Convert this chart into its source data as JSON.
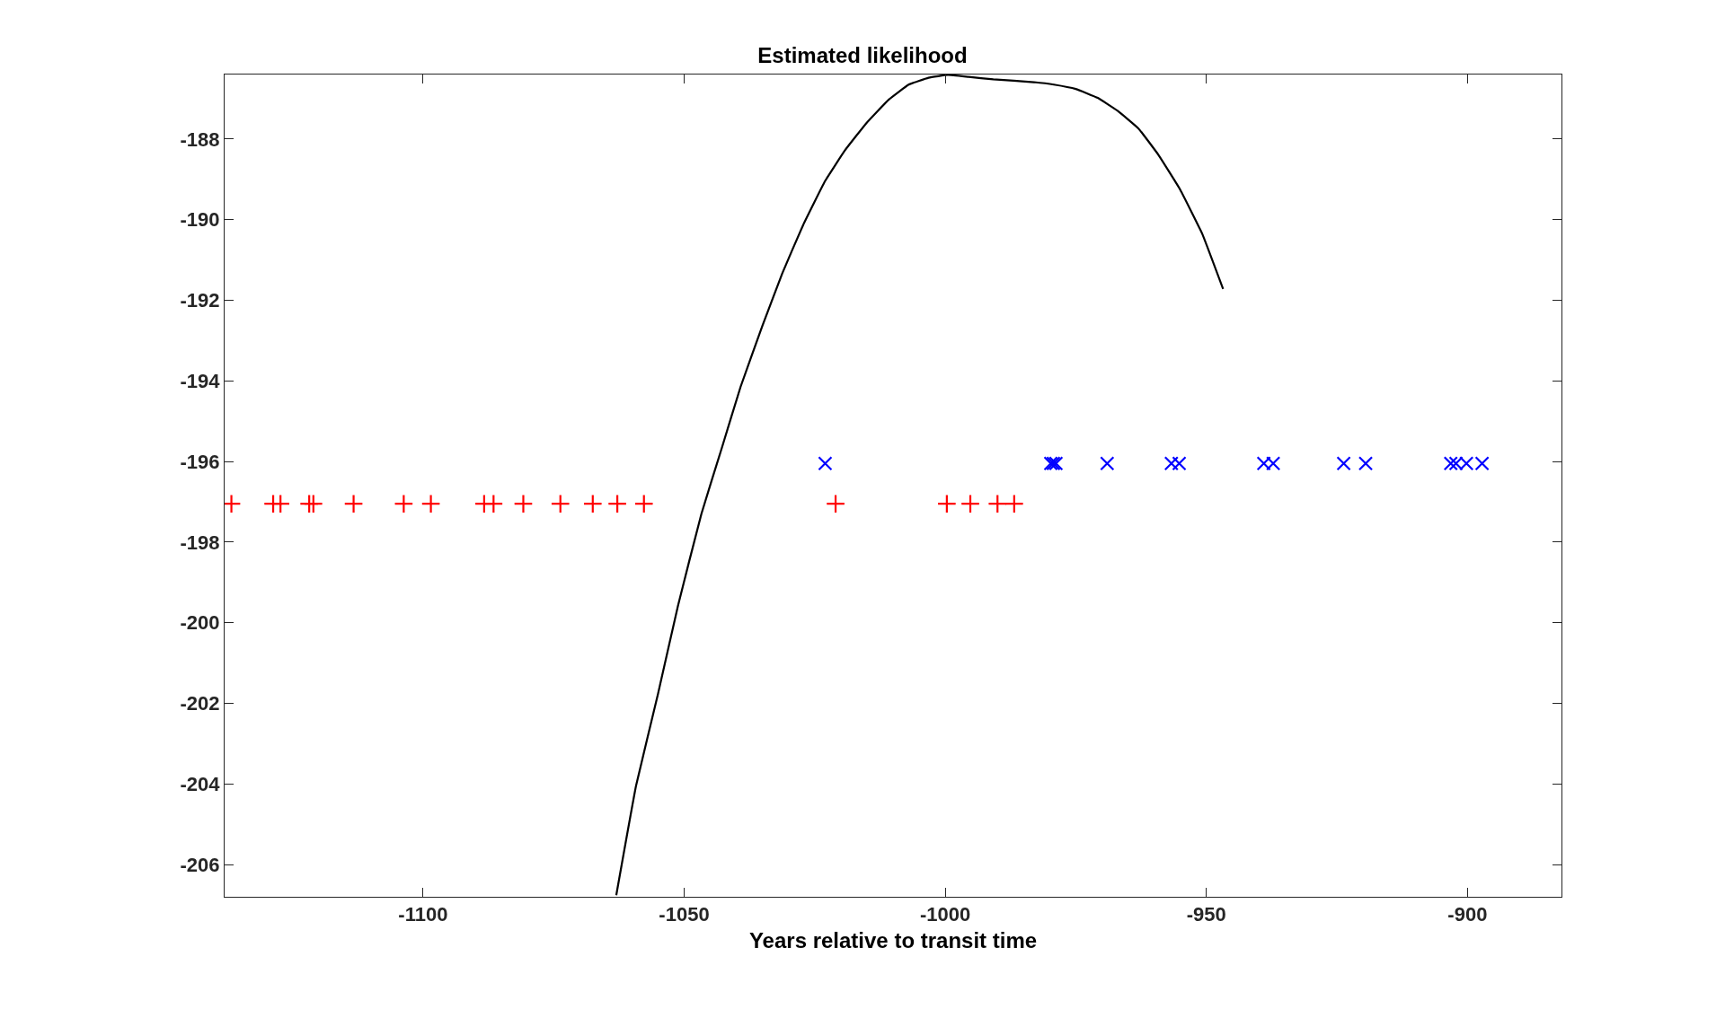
{
  "chart_data": {
    "type": "scatter",
    "title": "Estimated likelihood",
    "xlabel": "Years relative to transit time",
    "xlim": [
      -1138,
      -882
    ],
    "xticks": [
      -1100,
      -1050,
      -1000,
      -950,
      -900
    ],
    "ylim": [
      -206.8,
      -186.4
    ],
    "yticks": [
      -206,
      -204,
      -202,
      -200,
      -198,
      -196,
      -194,
      -192,
      -190,
      -188
    ],
    "series": [
      {
        "type": "line",
        "color": "#000000",
        "marker": "none",
        "line_style": "solid",
        "x": [
          -1063,
          -1059.2,
          -1055,
          -1051.2,
          -1046.7,
          -1042.8,
          -1039.2,
          -1035,
          -1031.2,
          -1027.2,
          -1023,
          -1019.2,
          -1015,
          -1010.8,
          -1007,
          -1003.2,
          -999.5,
          -995.5,
          -990.8,
          -983,
          -979.2,
          -975,
          -970.8,
          -967,
          -963,
          -959.2,
          -955,
          -950.8,
          -946.8
        ],
        "values": [
          -206.76,
          -204.04,
          -201.76,
          -199.59,
          -197.3,
          -195.67,
          -194.15,
          -192.63,
          -191.33,
          -190.13,
          -189.04,
          -188.28,
          -187.59,
          -187.02,
          -186.65,
          -186.48,
          -186.41,
          -186.46,
          -186.52,
          -186.59,
          -186.65,
          -186.76,
          -186.98,
          -187.3,
          -187.74,
          -188.39,
          -189.26,
          -190.35,
          -191.72
        ]
      },
      {
        "color": "#ff0000",
        "marker": "cross",
        "x": [
          -1136.7,
          -1128.7,
          -1127.3,
          -1121.8,
          -1121.0,
          -1113.3,
          -1103.7,
          -1098.5,
          -1088.3,
          -1086.5,
          -1080.8,
          -1073.7,
          -1067.5,
          -1062.8,
          -1057.7,
          -1021,
          -999.7,
          -995.2,
          -990,
          -986.8
        ],
        "values": [
          -197.05,
          -197.05,
          -197.05,
          -197.05,
          -197.05,
          -197.05,
          -197.05,
          -197.05,
          -197.05,
          -197.05,
          -197.05,
          -197.05,
          -197.05,
          -197.05,
          -197.05,
          -197.05,
          -197.05,
          -197.05,
          -197.05,
          -197.05
        ]
      },
      {
        "color": "#0000ff",
        "marker": "x",
        "x": [
          -1023,
          -979.8,
          -979.3,
          -978.8,
          -969,
          -956.7,
          -955.2,
          -939,
          -937.2,
          -923.7,
          -919.5,
          -903.2,
          -902.2,
          -900.2,
          -897.2
        ],
        "values": [
          -196.05,
          -196.05,
          -196.05,
          -196.05,
          -196.05,
          -196.05,
          -196.05,
          -196.05,
          -196.05,
          -196.05,
          -196.05,
          -196.05,
          -196.05,
          -196.05,
          -196.05
        ]
      }
    ]
  }
}
